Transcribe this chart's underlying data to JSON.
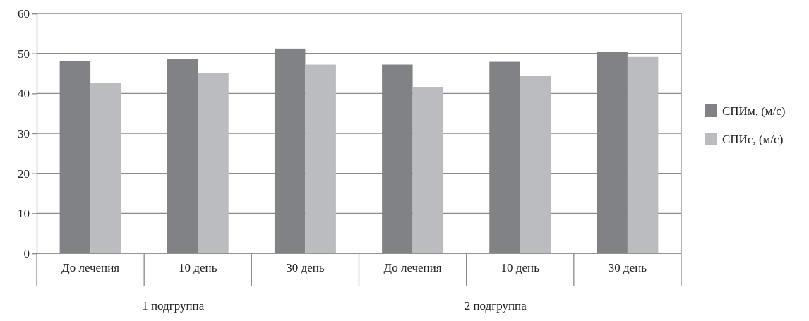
{
  "chart_data": {
    "type": "bar",
    "categories": [
      "До лечения",
      "10 день",
      "30 день",
      "До лечения",
      "10 день",
      "30 день"
    ],
    "series": [
      {
        "name": "СПИм, (м/с)",
        "color": "#818286",
        "values": [
          48,
          48.6,
          51.2,
          47.2,
          47.9,
          50.4
        ]
      },
      {
        "name": "СПИс, (м/с)",
        "color": "#bbbcc0",
        "values": [
          42.6,
          45.1,
          47.2,
          41.5,
          44.3,
          49.1
        ]
      }
    ],
    "ylim": [
      0,
      60
    ],
    "yticks": [
      0,
      10,
      20,
      30,
      40,
      50,
      60
    ],
    "grid": "y",
    "legend": "right",
    "annotations": [
      "1 подгруппа",
      "2 подгруппа"
    ]
  }
}
